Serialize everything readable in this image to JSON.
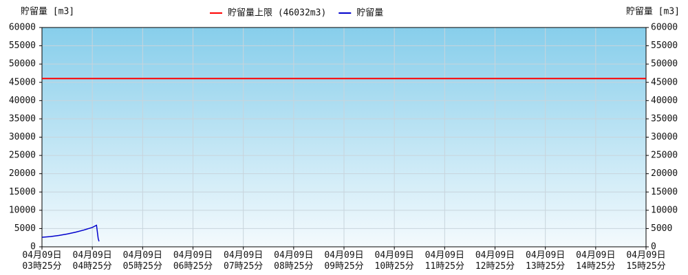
{
  "chart_data": {
    "type": "line",
    "y_label": "貯留量 [m3]",
    "y2_label": "貯留量 [m3]",
    "x": [
      "03:25",
      "03:35",
      "03:45",
      "03:55",
      "04:05",
      "04:15",
      "04:25",
      "04:30",
      "04:32",
      "04:33"
    ],
    "series": [
      {
        "name": "貯留量",
        "color": "#0000cc",
        "values": [
          2600,
          2800,
          3100,
          3500,
          4000,
          4600,
          5300,
          5900,
          2300,
          1500
        ]
      }
    ],
    "threshold": {
      "name": "貯留量上限 (46032m3)",
      "color": "#ff0000",
      "value": 46032
    },
    "xlim": [
      "03:25",
      "15:25"
    ],
    "xticks": [
      {
        "value": "03:25",
        "label": "04月09日 03時25分"
      },
      {
        "value": "04:25",
        "label": "04月09日 04時25分"
      },
      {
        "value": "05:25",
        "label": "04月09日 05時25分"
      },
      {
        "value": "06:25",
        "label": "04月09日 06時25分"
      },
      {
        "value": "07:25",
        "label": "04月09日 07時25分"
      },
      {
        "value": "08:25",
        "label": "04月09日 08時25分"
      },
      {
        "value": "09:25",
        "label": "04月09日 09時25分"
      },
      {
        "value": "10:25",
        "label": "04月09日 10時25分"
      },
      {
        "value": "11:25",
        "label": "04月09日 11時25分"
      },
      {
        "value": "12:25",
        "label": "04月09日 12時25分"
      },
      {
        "value": "13:25",
        "label": "04月09日 13時25分"
      },
      {
        "value": "14:25",
        "label": "04月09日 14時25分"
      },
      {
        "value": "15:25",
        "label": "04月09日 15時25分"
      }
    ],
    "ylim": [
      0,
      60000
    ],
    "yticks": [
      0,
      5000,
      10000,
      15000,
      20000,
      25000,
      30000,
      35000,
      40000,
      45000,
      50000,
      55000,
      60000
    ],
    "y2lim": [
      0,
      60000
    ],
    "y2ticks": [
      0,
      5000,
      10000,
      15000,
      20000,
      25000,
      30000,
      35000,
      40000,
      45000,
      50000,
      55000,
      60000
    ],
    "grid": true,
    "legend": "top"
  }
}
